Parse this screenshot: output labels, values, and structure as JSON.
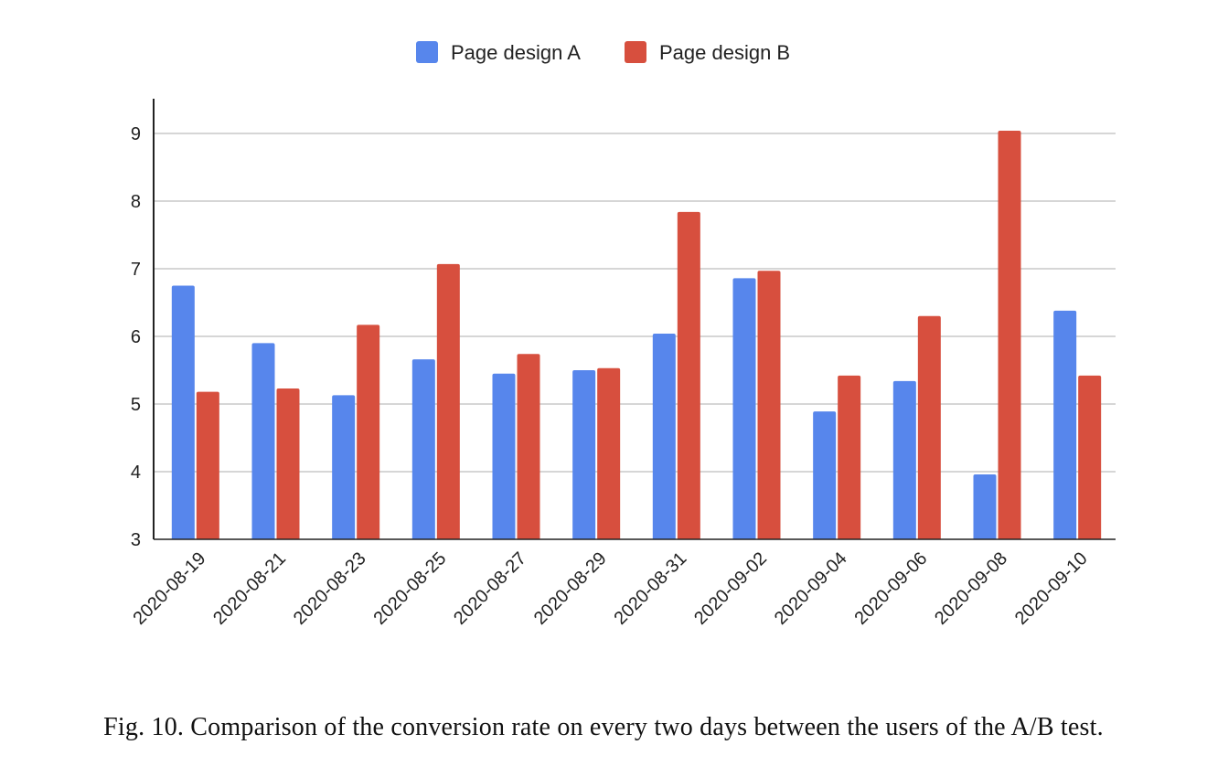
{
  "chart_data": {
    "type": "bar",
    "categories": [
      "2020-08-19",
      "2020-08-21",
      "2020-08-23",
      "2020-08-25",
      "2020-08-27",
      "2020-08-29",
      "2020-08-31",
      "2020-09-02",
      "2020-09-04",
      "2020-09-06",
      "2020-09-08",
      "2020-09-10"
    ],
    "series": [
      {
        "name": "Page design A",
        "color": "#5786EC",
        "values": [
          6.75,
          5.9,
          5.13,
          5.66,
          5.45,
          5.5,
          6.04,
          6.86,
          4.89,
          5.34,
          3.96,
          6.38
        ]
      },
      {
        "name": "Page design B",
        "color": "#D74F3E",
        "values": [
          5.18,
          5.23,
          6.17,
          7.07,
          5.74,
          5.53,
          7.84,
          6.97,
          5.42,
          6.3,
          9.04,
          5.42
        ]
      }
    ],
    "title": "",
    "xlabel": "",
    "ylabel": "",
    "ylim": [
      3,
      9
    ],
    "yticks": [
      3,
      4,
      5,
      6,
      7,
      8,
      9
    ],
    "grid": true,
    "legend_position": "top-center"
  },
  "caption": "Fig. 10.  Comparison of the conversion rate on every two days between the users of the A/B test."
}
